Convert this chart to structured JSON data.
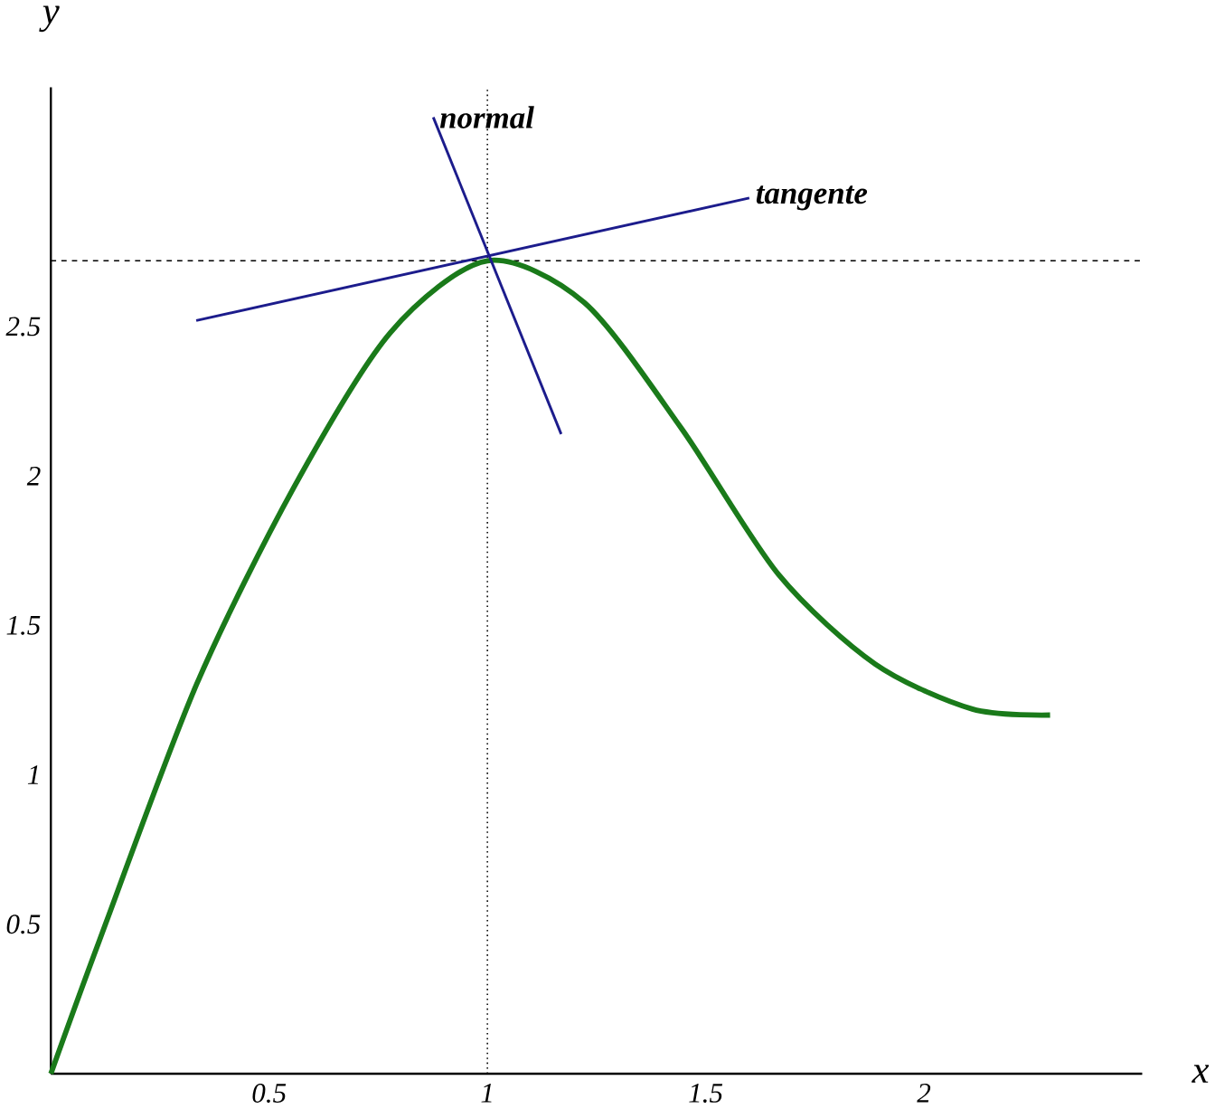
{
  "chart_data": {
    "type": "line",
    "xlabel": "x",
    "ylabel": "y",
    "xlim": [
      0,
      2.5
    ],
    "ylim": [
      0,
      3.3
    ],
    "xticks": [
      0.5,
      1,
      1.5,
      2
    ],
    "yticks": [
      0.5,
      1,
      1.5,
      2,
      2.5
    ],
    "grid": false,
    "marker": "none",
    "line_style": "solid",
    "series": [
      {
        "color": "#1a7a1a",
        "x": [
          0,
          0.111,
          0.333,
          0.556,
          0.778,
          1,
          1.222,
          1.444,
          1.667,
          1.889,
          2.111,
          2.289
        ],
        "values": [
          0,
          0.445,
          1.3,
          1.96,
          2.48,
          2.72,
          2.58,
          2.16,
          1.67,
          1.37,
          1.22,
          1.2
        ]
      },
      {
        "color": "#1c1c8c",
        "x": [
          0.333,
          1.6
        ],
        "values": [
          2.52,
          2.93
        ]
      },
      {
        "color": "#1c1c8c",
        "x": [
          0.876,
          1.169
        ],
        "values": [
          3.2,
          2.14
        ]
      }
    ],
    "ref_lines": [
      {
        "axis": "x",
        "value": 1,
        "line_style": "dotted"
      },
      {
        "axis": "y",
        "value": 2.72,
        "line_style": "dashed"
      }
    ],
    "annotations": [
      "normal",
      "tangente"
    ]
  }
}
